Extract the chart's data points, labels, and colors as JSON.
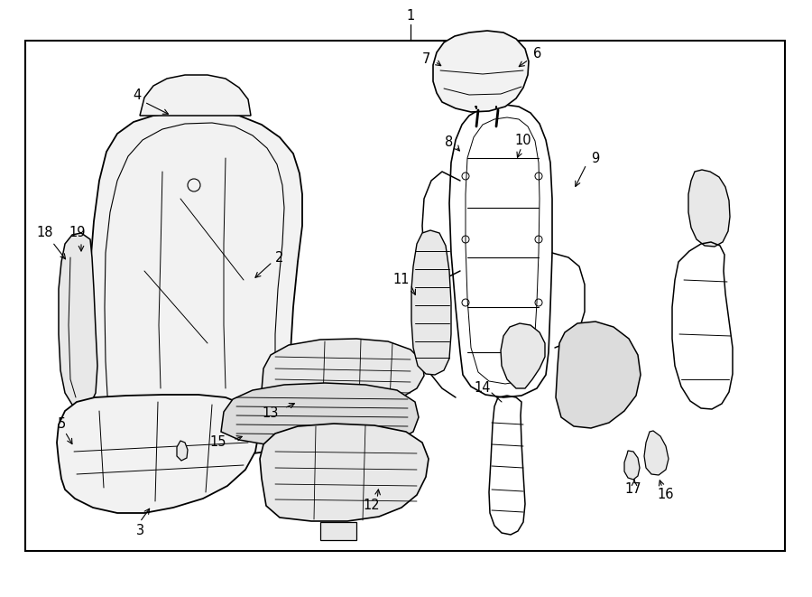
{
  "background_color": "#ffffff",
  "border_color": "#000000",
  "text_color": "#000000",
  "fig_width": 9.0,
  "fig_height": 6.61,
  "dpi": 100,
  "label_fontsize": 10.5,
  "lw_main": 1.2,
  "lw_inner": 0.7,
  "face_light": "#f2f2f2",
  "face_mid": "#e8e8e8",
  "face_dark": "#dcdcdc"
}
